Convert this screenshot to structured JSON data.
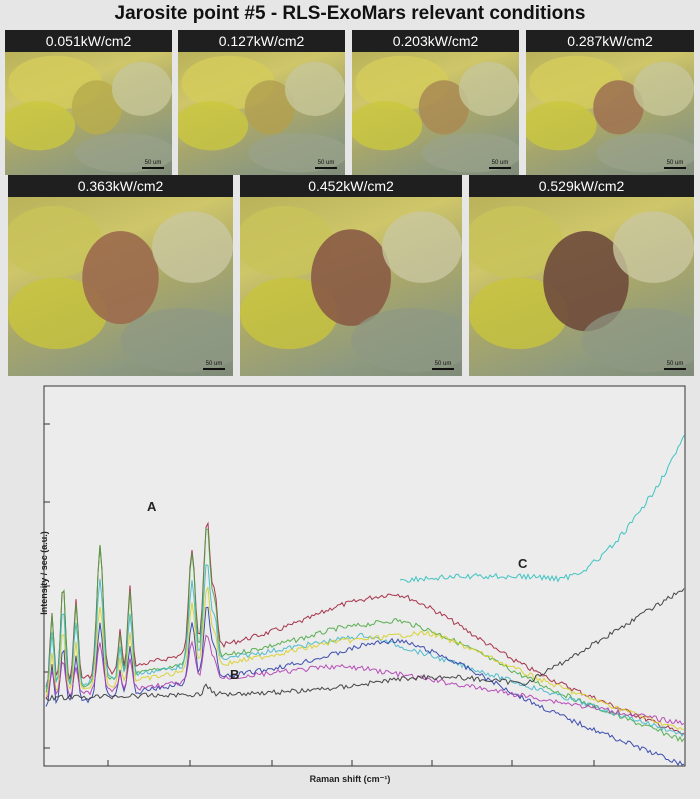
{
  "figure": {
    "title": "Jarosite point #5 - RLS-ExoMars relevant conditions",
    "power_labels": [
      "0.051kW/cm2",
      "0.127kW/cm2",
      "0.203kW/cm2",
      "0.287kW/cm2",
      "0.363kW/cm2",
      "0.452kW/cm2",
      "0.529kW/cm2"
    ],
    "scale_bar": "50 um"
  },
  "chart_data": {
    "type": "line",
    "xlabel": "Raman shift (cm⁻¹)",
    "ylabel": "Intensity / sec (a.u.)",
    "grid": false,
    "annotations": [
      "A",
      "B",
      "C"
    ],
    "series": [
      {
        "color": "#a0203a"
      },
      {
        "color": "#49a840"
      },
      {
        "color": "#3fb7c9"
      },
      {
        "color": "#d8cf25"
      },
      {
        "color": "#2a3ca8"
      },
      {
        "color": "#b03cb3"
      },
      {
        "color": "#333333"
      }
    ]
  }
}
